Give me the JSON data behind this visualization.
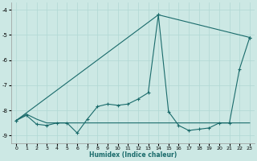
{
  "xlabel": "Humidex (Indice chaleur)",
  "ylabel": "",
  "background_color": "#cce8e4",
  "grid_color": "#b0d8d4",
  "line_color": "#1a6b6b",
  "xlim": [
    -0.5,
    23.5
  ],
  "ylim": [
    -9.3,
    -3.7
  ],
  "yticks": [
    -9,
    -8,
    -7,
    -6,
    -5,
    -4
  ],
  "xticks": [
    0,
    1,
    2,
    3,
    4,
    5,
    6,
    7,
    8,
    9,
    10,
    11,
    12,
    13,
    14,
    15,
    16,
    17,
    18,
    19,
    20,
    21,
    22,
    23
  ],
  "series1_nomarker": [
    [
      0,
      -8.4
    ],
    [
      1,
      -8.15
    ],
    [
      2,
      -8.35
    ],
    [
      3,
      -8.5
    ],
    [
      4,
      -8.5
    ],
    [
      5,
      -8.5
    ],
    [
      6,
      -8.5
    ],
    [
      7,
      -8.5
    ],
    [
      8,
      -8.5
    ],
    [
      9,
      -8.5
    ],
    [
      10,
      -8.5
    ],
    [
      11,
      -8.5
    ],
    [
      12,
      -8.5
    ],
    [
      13,
      -8.5
    ],
    [
      14,
      -8.5
    ],
    [
      15,
      -8.5
    ],
    [
      16,
      -8.5
    ],
    [
      17,
      -8.5
    ],
    [
      18,
      -8.5
    ],
    [
      19,
      -8.5
    ],
    [
      20,
      -8.5
    ],
    [
      21,
      -8.5
    ],
    [
      22,
      -8.5
    ],
    [
      23,
      -8.5
    ]
  ],
  "series2_marker": [
    [
      0,
      -8.4
    ],
    [
      1,
      -8.2
    ],
    [
      2,
      -8.55
    ],
    [
      3,
      -8.6
    ],
    [
      4,
      -8.5
    ],
    [
      5,
      -8.5
    ],
    [
      6,
      -8.9
    ],
    [
      7,
      -8.35
    ],
    [
      8,
      -7.85
    ],
    [
      9,
      -7.75
    ],
    [
      10,
      -7.8
    ],
    [
      11,
      -7.75
    ],
    [
      12,
      -7.55
    ],
    [
      13,
      -7.3
    ],
    [
      14,
      -4.2
    ],
    [
      15,
      -8.05
    ],
    [
      16,
      -8.6
    ],
    [
      17,
      -8.8
    ],
    [
      18,
      -8.75
    ],
    [
      19,
      -8.7
    ],
    [
      20,
      -8.5
    ],
    [
      21,
      -8.5
    ],
    [
      22,
      -6.35
    ],
    [
      23,
      -5.1
    ]
  ],
  "series3_diagonal": [
    [
      0,
      -8.4
    ],
    [
      14,
      -4.2
    ],
    [
      23,
      -5.1
    ]
  ]
}
